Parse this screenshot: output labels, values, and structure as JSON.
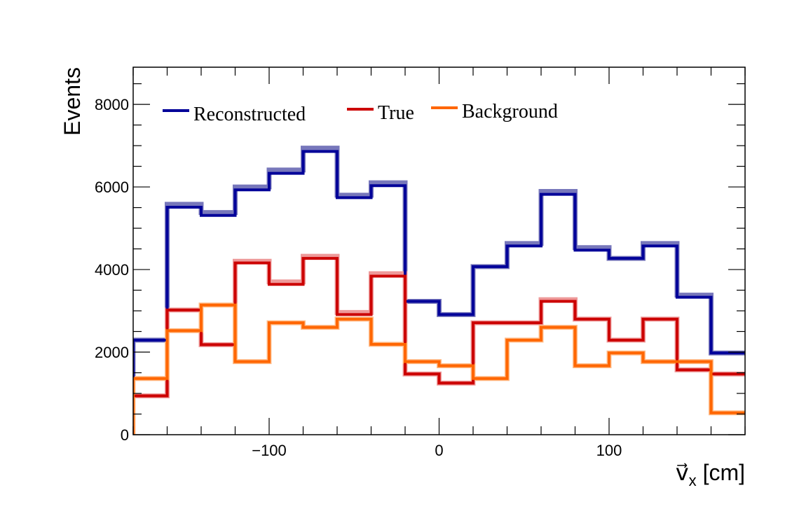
{
  "chart_data": {
    "type": "histogram",
    "bin_edges": [
      -180,
      -160,
      -140,
      -120,
      -100,
      -80,
      -60,
      -40,
      -20,
      0,
      20,
      40,
      60,
      80,
      100,
      120,
      140,
      160,
      180
    ],
    "xlim": [
      -180,
      180
    ],
    "ylim": [
      0,
      8900
    ],
    "x_ticks": [
      -100,
      0,
      100
    ],
    "x_tick_labels": [
      "−100",
      "0",
      "100"
    ],
    "y_ticks": [
      0,
      2000,
      4000,
      6000,
      8000
    ],
    "y_tick_labels": [
      "0",
      "2000",
      "4000",
      "6000",
      "8000"
    ],
    "ylabel": "Events",
    "xlabel": {
      "symbol": "v",
      "arrow": "⃗",
      "subscript": "x",
      "unit": "[cm]"
    },
    "legend_position": "top",
    "series": [
      {
        "name": "Reconstructed",
        "color": "#000099",
        "shadow_color": "#7777bb",
        "values": [
          2290,
          5510,
          5310,
          5930,
          6330,
          6860,
          5740,
          6030,
          3230,
          2910,
          4070,
          4570,
          5820,
          4470,
          4270,
          4570,
          3330,
          1980
        ],
        "shadow_values": [
          2290,
          5580,
          5380,
          6000,
          6410,
          6940,
          5800,
          6100,
          3230,
          2910,
          4070,
          4630,
          5890,
          4530,
          4270,
          4630,
          3380,
          1980
        ]
      },
      {
        "name": "True",
        "color": "#cc0000",
        "shadow_color": "#ee9999",
        "values": [
          940,
          3020,
          2180,
          4160,
          3640,
          4270,
          2910,
          3840,
          1470,
          1250,
          2710,
          2710,
          3230,
          2800,
          2290,
          2800,
          1570,
          1470
        ],
        "shadow_values": [
          940,
          3020,
          2180,
          4200,
          3700,
          4320,
          2960,
          3900,
          1470,
          1250,
          2710,
          2710,
          3270,
          2800,
          2290,
          2800,
          1570,
          1470
        ]
      },
      {
        "name": "Background",
        "color": "#ff6600",
        "shadow_color": "#ffbb88",
        "values": [
          1360,
          2520,
          3140,
          1770,
          2710,
          2600,
          2800,
          2190,
          1770,
          1670,
          1360,
          2290,
          2600,
          1670,
          1980,
          1770,
          1770,
          530
        ],
        "shadow_values": [
          1360,
          2520,
          3140,
          1770,
          2710,
          2600,
          2800,
          2190,
          1770,
          1670,
          1360,
          2290,
          2600,
          1670,
          1980,
          1770,
          1770,
          530
        ]
      }
    ]
  }
}
